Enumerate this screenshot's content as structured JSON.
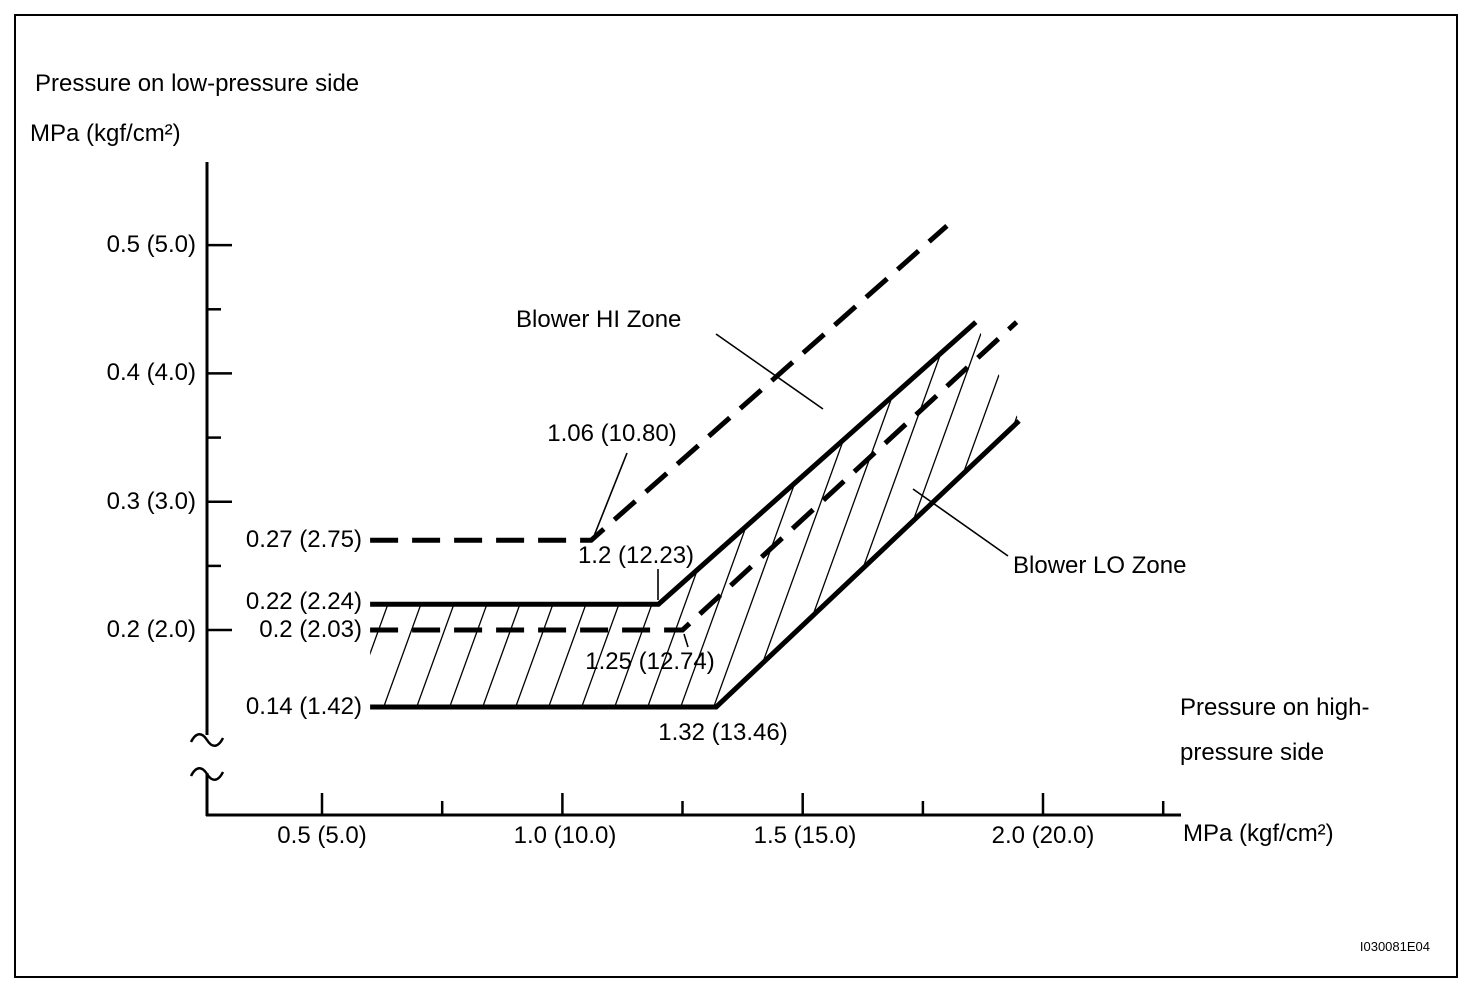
{
  "figure": {
    "code": "I030081E04"
  },
  "colors": {
    "ink": "#000000",
    "background": "#ffffff"
  },
  "y_axis": {
    "title": "Pressure on low-pressure side",
    "unit": "MPa (kgf/cm²)",
    "ticks": [
      {
        "value": 0.5,
        "label": "0.5 (5.0)"
      },
      {
        "value": 0.4,
        "label": "0.4 (4.0)"
      },
      {
        "value": 0.3,
        "label": "0.3 (3.0)"
      },
      {
        "value": 0.2,
        "label": "0.2 (2.0)"
      }
    ],
    "minor_ticks": [
      0.25,
      0.35,
      0.45
    ]
  },
  "x_axis": {
    "title_line1": "Pressure on high-",
    "title_line2": "pressure side",
    "unit": "MPa (kgf/cm²)",
    "ticks": [
      {
        "value": 0.5,
        "label": "0.5 (5.0)"
      },
      {
        "value": 1.0,
        "label": "1.0 (10.0)"
      },
      {
        "value": 1.5,
        "label": "1.5 (15.0)"
      },
      {
        "value": 2.0,
        "label": "2.0 (20.0)"
      }
    ],
    "minor_ticks": [
      0.75,
      1.25,
      1.75,
      2.25
    ]
  },
  "chart_data": {
    "type": "line",
    "xlabel": "Pressure on high-pressure side MPa (kgf/cm²)",
    "ylabel": "Pressure on low-pressure side MPa (kgf/cm²)",
    "xlim": [
      0.26,
      2.35
    ],
    "ylim": [
      0.055,
      0.565
    ],
    "grid": false,
    "axis_break_on_y": true,
    "series": [
      {
        "name": "blower-hi-zone-upper-limit",
        "style": "dashed",
        "start_label": "0.27 (2.75)",
        "breakpoint_label": "1.06 (10.80)",
        "points": [
          [
            0.6,
            0.27
          ],
          [
            1.06,
            0.27
          ],
          [
            1.8,
            0.515
          ]
        ]
      },
      {
        "name": "blower-lo-zone-upper-limit",
        "style": "solid",
        "start_label": "0.22 (2.24)",
        "breakpoint_label": "1.2 (12.23)",
        "points": [
          [
            0.6,
            0.22
          ],
          [
            1.2,
            0.22
          ],
          [
            1.86,
            0.44
          ]
        ]
      },
      {
        "name": "blower-hi-zone-lower-limit",
        "style": "dashed",
        "start_label": "0.2 (2.03)",
        "breakpoint_label": "1.25 (12.74)",
        "points": [
          [
            0.6,
            0.2
          ],
          [
            1.25,
            0.2
          ],
          [
            1.945,
            0.44
          ]
        ]
      },
      {
        "name": "blower-lo-zone-lower-limit",
        "style": "solid",
        "start_label": "0.14 (1.42)",
        "breakpoint_label": "1.32 (13.46)",
        "points": [
          [
            0.6,
            0.14
          ],
          [
            1.32,
            0.14
          ],
          [
            1.95,
            0.363
          ]
        ]
      }
    ],
    "zones": [
      {
        "label": "Blower HI Zone",
        "upper": "blower-hi-zone-upper-limit",
        "lower": "blower-hi-zone-lower-limit",
        "hatched": false
      },
      {
        "label": "Blower LO Zone",
        "upper": "blower-lo-zone-upper-limit",
        "lower": "blower-lo-zone-lower-limit",
        "hatched": true
      }
    ]
  }
}
